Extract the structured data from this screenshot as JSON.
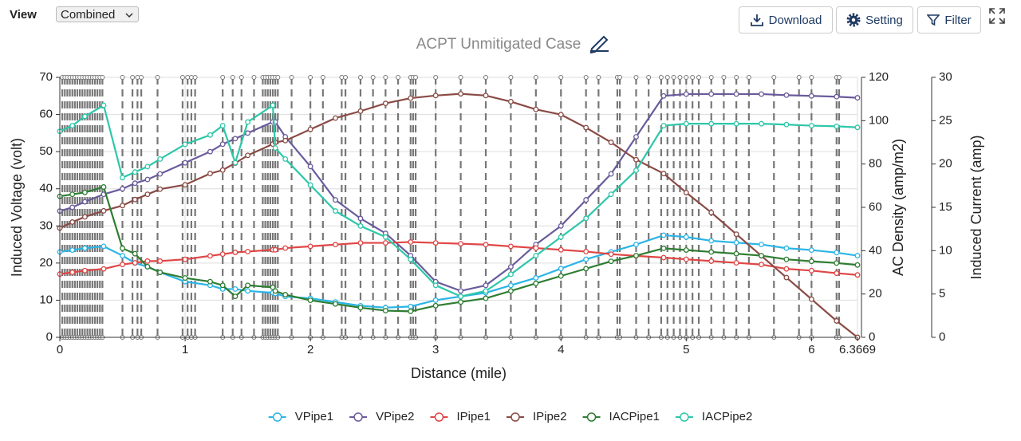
{
  "view_label": "View",
  "view_value": "Combined",
  "buttons": [
    "Download",
    "Setting",
    "Filter"
  ],
  "chart_data": {
    "type": "line",
    "title": "ACPT Unmitigated Case",
    "xlabel": "Distance (mile)",
    "ylabel": "Induced Voltage (volt)",
    "y2label": "AC Density (amp/m2)",
    "y3label": "Induced Current (amp)",
    "xlim": [
      0,
      6.3669
    ],
    "xticks": [
      0,
      1,
      2,
      3,
      4,
      5,
      6,
      6.3669
    ],
    "ylim": [
      0,
      70
    ],
    "yticks": [
      0,
      10,
      20,
      30,
      40,
      50,
      60,
      70
    ],
    "y2lim": [
      0,
      120
    ],
    "y2ticks": [
      0,
      20,
      40,
      60,
      80,
      100,
      120
    ],
    "y3lim": [
      0,
      30
    ],
    "y3ticks": [
      0,
      5,
      10,
      15,
      20,
      25,
      30
    ],
    "grid": true,
    "legend": "bottom",
    "markers": [
      0.02,
      0.04,
      0.06,
      0.08,
      0.1,
      0.12,
      0.14,
      0.16,
      0.18,
      0.2,
      0.22,
      0.24,
      0.26,
      0.28,
      0.3,
      0.32,
      0.34,
      0.5,
      0.58,
      0.62,
      0.65,
      0.78,
      0.98,
      1.02,
      1.05,
      1.08,
      1.3,
      1.38,
      1.45,
      1.55,
      1.62,
      1.64,
      1.66,
      1.68,
      1.7,
      1.72,
      1.74,
      1.85,
      2.0,
      2.1,
      2.25,
      2.28,
      2.4,
      2.5,
      2.6,
      2.7,
      2.8,
      2.82,
      2.84,
      3.0,
      3.2,
      3.4,
      3.6,
      3.8,
      4.0,
      4.2,
      4.3,
      4.45,
      4.47,
      4.6,
      4.7,
      4.8,
      4.85,
      4.9,
      4.95,
      5.0,
      5.05,
      5.1,
      5.2,
      5.3,
      5.4,
      5.5,
      5.7,
      5.9,
      6.0,
      6.2,
      6.22
    ],
    "x": [
      0,
      0.1,
      0.2,
      0.35,
      0.5,
      0.6,
      0.7,
      0.8,
      1.0,
      1.2,
      1.3,
      1.4,
      1.5,
      1.7,
      1.72,
      1.8,
      2.0,
      2.2,
      2.4,
      2.6,
      2.8,
      3.0,
      3.2,
      3.4,
      3.6,
      3.8,
      4.0,
      4.2,
      4.4,
      4.6,
      4.82,
      5.0,
      5.2,
      5.4,
      5.6,
      5.8,
      6.0,
      6.2,
      6.3669
    ],
    "series": [
      {
        "name": "VPipe1",
        "color": "#2bb5e6",
        "values": [
          23,
          23.5,
          24,
          24.5,
          22,
          20,
          19,
          17.5,
          15,
          14,
          13,
          13,
          12.5,
          12,
          11.8,
          11,
          10.5,
          9.5,
          8.5,
          8,
          8.3,
          10,
          11,
          12,
          14,
          16,
          18.5,
          21,
          23,
          25,
          27.5,
          27,
          26,
          25.5,
          25,
          24,
          23.5,
          22.8,
          22
        ]
      },
      {
        "name": "VPipe2",
        "color": "#6a5b9c",
        "values": [
          34,
          35,
          36.5,
          38.5,
          40,
          41.5,
          42.5,
          44,
          47,
          50,
          52,
          53.5,
          55,
          58,
          58,
          54,
          46,
          37,
          32,
          28,
          22,
          15,
          12.5,
          14,
          19,
          25,
          30,
          37,
          44,
          54,
          65,
          65.5,
          65.5,
          65.5,
          65.5,
          65.2,
          65,
          64.8,
          64.5
        ]
      },
      {
        "name": "IPipe1",
        "color": "#e04646",
        "axis": "y3",
        "values": [
          7.3,
          7.5,
          7.7,
          7.9,
          8.4,
          8.6,
          8.8,
          8.8,
          9.0,
          9.4,
          9.6,
          9.8,
          9.9,
          10.1,
          10.1,
          10.3,
          10.5,
          10.7,
          10.9,
          10.9,
          11.0,
          10.9,
          10.8,
          10.7,
          10.5,
          10.3,
          10.1,
          9.9,
          9.6,
          9.4,
          9.2,
          9.0,
          8.8,
          8.6,
          8.4,
          7.9,
          7.7,
          7.4,
          7.2
        ]
      },
      {
        "name": "IPipe2",
        "color": "#8a4b45",
        "axis": "y3",
        "values": [
          12.6,
          13.3,
          13.9,
          14.6,
          15.2,
          15.9,
          16.5,
          17.1,
          17.6,
          18.9,
          19.3,
          20.1,
          21.0,
          22.3,
          22.5,
          22.7,
          24.0,
          25.3,
          26.1,
          27.0,
          27.6,
          27.9,
          28.1,
          27.9,
          27.2,
          26.3,
          25.7,
          24.2,
          22.5,
          20.5,
          18.9,
          16.7,
          14.4,
          11.9,
          9.4,
          6.9,
          4.4,
          1.9,
          0
        ]
      },
      {
        "name": "IACPipe1",
        "color": "#2e7d32",
        "axis": "y2",
        "values": [
          65.1,
          66.0,
          66.9,
          69.4,
          41.1,
          38.6,
          32.6,
          30.0,
          27.4,
          25.7,
          24.0,
          18.9,
          24.0,
          23.1,
          21.4,
          19.7,
          17.1,
          15.4,
          13.7,
          12.3,
          12.0,
          14.6,
          16.3,
          18.0,
          21.4,
          24.9,
          28.3,
          31.7,
          35.1,
          37.7,
          41.1,
          40.3,
          39.4,
          38.6,
          37.7,
          36.0,
          35.1,
          34.3,
          33.4
        ]
      },
      {
        "name": "IACPipe2",
        "color": "#2ec7a9",
        "axis": "y2",
        "values": [
          95.1,
          97.7,
          102.0,
          107.1,
          73.7,
          76.3,
          78.8,
          82.3,
          89.1,
          93.4,
          97.7,
          80.6,
          99.4,
          107.1,
          87.4,
          82.3,
          70.3,
          58.3,
          51.4,
          46.3,
          36.0,
          24.0,
          18.9,
          21.4,
          29.1,
          37.7,
          46.3,
          54.9,
          66.0,
          77.1,
          97.7,
          98.6,
          98.6,
          98.6,
          98.6,
          98.2,
          97.7,
          97.4,
          96.9
        ]
      }
    ]
  }
}
